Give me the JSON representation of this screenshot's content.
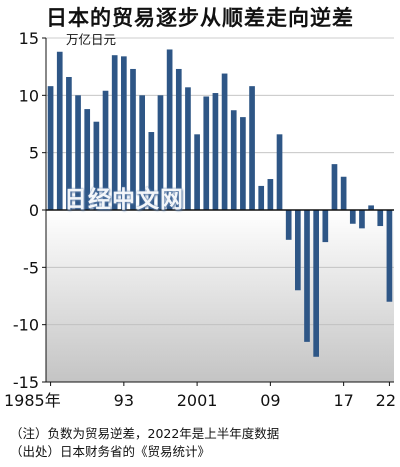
{
  "title": "日本的贸易逐步从顺差走向逆差",
  "notes": [
    "（注）负数为贸易逆差，2022年是上半年度数据",
    "（出处）日本财务省的《贸易统计》"
  ],
  "watermark": "日经中文网",
  "colors": {
    "bar": "#2e5686",
    "positive_bg": "#ffffff",
    "negative_bg_top": "#ffffff",
    "negative_bg_bottom": "#c4c4c4",
    "grid": "#bdbdbd"
  },
  "chart_data": {
    "type": "bar",
    "title": "日本的贸易逐步从顺差走向逆差",
    "ylabel": "万亿日元",
    "ylim": [
      -15,
      15
    ],
    "yticks": [
      15,
      10,
      5,
      0,
      -5,
      -10,
      -15
    ],
    "grid": true,
    "categories": [
      "1985",
      "1986",
      "1987",
      "1988",
      "1989",
      "1990",
      "1991",
      "1992",
      "1993",
      "1994",
      "1995",
      "1996",
      "1997",
      "1998",
      "1999",
      "2000",
      "2001",
      "2002",
      "2003",
      "2004",
      "2005",
      "2006",
      "2007",
      "2008",
      "2009",
      "2010",
      "2011",
      "2012",
      "2013",
      "2014",
      "2015",
      "2016",
      "2017",
      "2018",
      "2019",
      "2020",
      "2021",
      "2022"
    ],
    "values": [
      10.8,
      13.8,
      11.6,
      10.0,
      8.8,
      7.7,
      10.4,
      13.5,
      13.4,
      12.3,
      10.0,
      6.8,
      10.0,
      14.0,
      12.3,
      10.7,
      6.6,
      9.9,
      10.2,
      11.9,
      8.7,
      8.1,
      10.8,
      2.1,
      2.7,
      6.6,
      -2.6,
      -7.0,
      -11.5,
      -12.8,
      -2.8,
      4.0,
      2.9,
      -1.2,
      -1.6,
      0.4,
      -1.4,
      -8.0
    ],
    "xtick_labels": [
      {
        "category": "1985",
        "label": "1985年"
      },
      {
        "category": "1993",
        "label": "93"
      },
      {
        "category": "2001",
        "label": "2001"
      },
      {
        "category": "2009",
        "label": "09"
      },
      {
        "category": "2017",
        "label": "17"
      },
      {
        "category": "2022",
        "label": "22"
      }
    ]
  }
}
